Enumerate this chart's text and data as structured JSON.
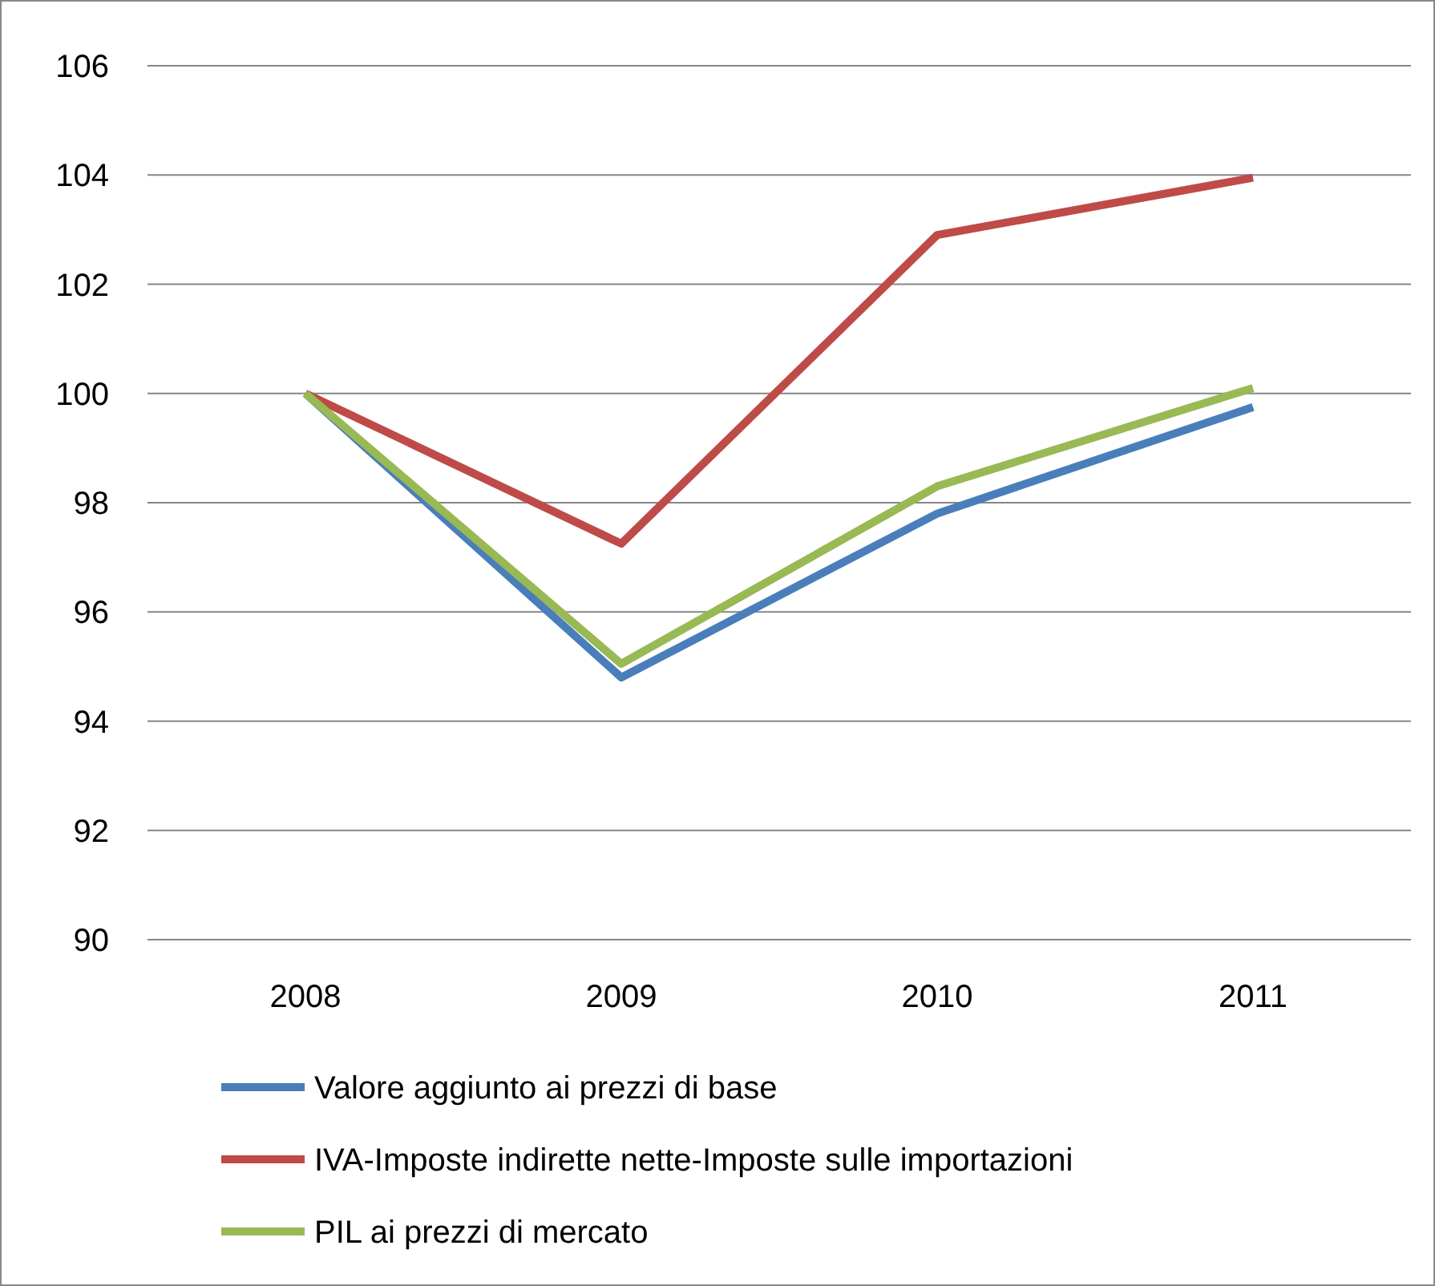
{
  "chart_data": {
    "type": "line",
    "categories": [
      "2008",
      "2009",
      "2010",
      "2011"
    ],
    "series": [
      {
        "name": "Valore aggiunto ai prezzi di base",
        "color": "#4a7ebb",
        "values": [
          100,
          94.8,
          97.8,
          99.75
        ]
      },
      {
        "name": "IVA-Imposte indirette nette-Imposte sulle importazioni",
        "color": "#be4b48",
        "values": [
          100,
          97.25,
          102.9,
          103.95
        ]
      },
      {
        "name": "PIL ai prezzi di mercato",
        "color": "#98b954",
        "values": [
          100,
          95.05,
          98.3,
          100.1
        ]
      }
    ],
    "ylim": [
      90,
      106
    ],
    "yticks": [
      90,
      92,
      94,
      96,
      98,
      100,
      102,
      104,
      106
    ],
    "grid": "y",
    "legend": "bottom",
    "marker": "none",
    "line_style": "solid"
  }
}
